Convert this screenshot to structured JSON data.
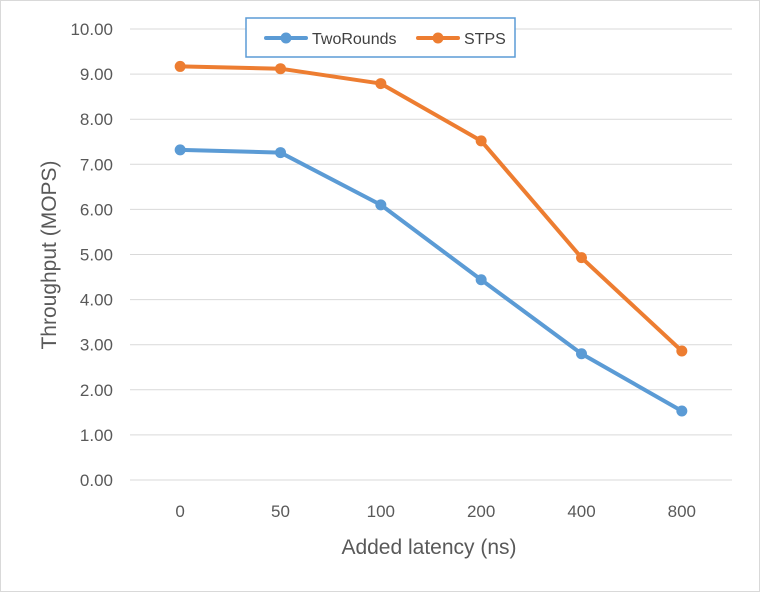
{
  "chart_data": {
    "type": "line",
    "categories": [
      "0",
      "50",
      "100",
      "200",
      "400",
      "800"
    ],
    "series": [
      {
        "name": "TwoRounds",
        "values": [
          7.32,
          7.26,
          6.1,
          4.44,
          2.8,
          1.53
        ],
        "color": "#5b9bd5"
      },
      {
        "name": "STPS",
        "values": [
          9.17,
          9.12,
          8.79,
          7.52,
          4.93,
          2.86
        ],
        "color": "#ed7d31"
      }
    ],
    "title": "",
    "xlabel": "Added latency (ns)",
    "ylabel": "Throughput (MOPS)",
    "ylim": [
      0,
      10
    ],
    "yticks": [
      "0.00",
      "1.00",
      "2.00",
      "3.00",
      "4.00",
      "5.00",
      "6.00",
      "7.00",
      "8.00",
      "9.00",
      "10.00"
    ],
    "grid": true,
    "legend_position": "top"
  }
}
